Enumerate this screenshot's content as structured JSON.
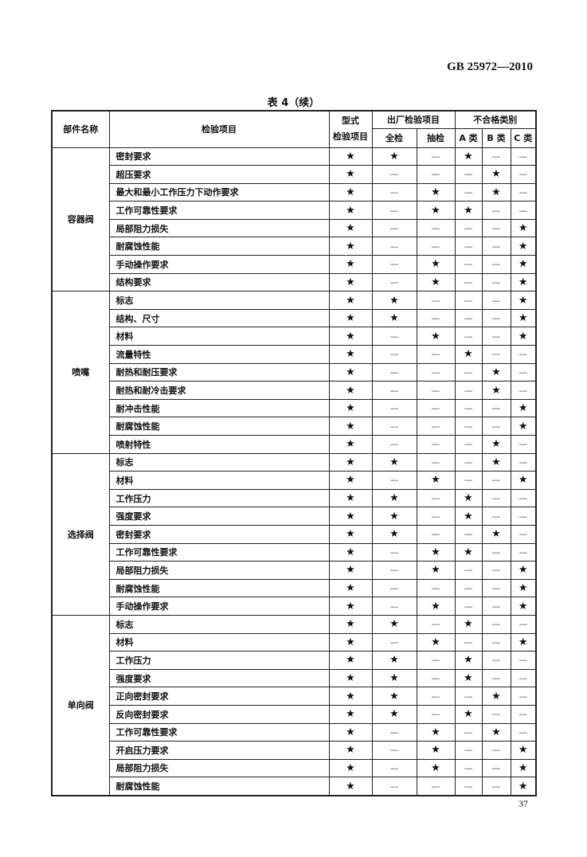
{
  "header": {
    "standard_no": "GB 25972—2010"
  },
  "table_title": "表 4（续）",
  "columns": {
    "part": "部件名称",
    "item": "检验项目",
    "type_test": "型式\n检验项目",
    "factory": "出厂检验项目",
    "full": "全检",
    "sample": "抽检",
    "nonconform": "不合格类别",
    "a": "A 类",
    "b": "B 类",
    "c": "C 类"
  },
  "groups": [
    {
      "part": "容器阀",
      "rows": [
        {
          "item": "密封要求",
          "marks": [
            "★",
            "★",
            "—",
            "★",
            "—",
            "—"
          ]
        },
        {
          "item": "超压要求",
          "marks": [
            "★",
            "—",
            "—",
            "—",
            "★",
            "—"
          ]
        },
        {
          "item": "最大和最小工作压力下动作要求",
          "marks": [
            "★",
            "—",
            "★",
            "—",
            "★",
            "—"
          ]
        },
        {
          "item": "工作可靠性要求",
          "marks": [
            "★",
            "—",
            "★",
            "★",
            "—",
            "—"
          ]
        },
        {
          "item": "局部阻力损失",
          "marks": [
            "★",
            "—",
            "—",
            "—",
            "—",
            "★"
          ]
        },
        {
          "item": "耐腐蚀性能",
          "marks": [
            "★",
            "—",
            "—",
            "—",
            "—",
            "★"
          ]
        },
        {
          "item": "手动操作要求",
          "marks": [
            "★",
            "—",
            "★",
            "—",
            "—",
            "★"
          ]
        },
        {
          "item": "结构要求",
          "marks": [
            "★",
            "—",
            "★",
            "—",
            "—",
            "★"
          ]
        }
      ]
    },
    {
      "part": "喷嘴",
      "rows": [
        {
          "item": "标志",
          "marks": [
            "★",
            "★",
            "—",
            "—",
            "—",
            "★"
          ]
        },
        {
          "item": "结构、尺寸",
          "marks": [
            "★",
            "★",
            "—",
            "—",
            "—",
            "★"
          ]
        },
        {
          "item": "材料",
          "marks": [
            "★",
            "—",
            "★",
            "—",
            "—",
            "★"
          ]
        },
        {
          "item": "流量特性",
          "marks": [
            "★",
            "—",
            "—",
            "★",
            "—",
            "—"
          ]
        },
        {
          "item": "耐热和耐压要求",
          "marks": [
            "★",
            "—",
            "—",
            "—",
            "★",
            "—"
          ]
        },
        {
          "item": "耐热和耐冷击要求",
          "marks": [
            "★",
            "—",
            "—",
            "—",
            "★",
            "—"
          ]
        },
        {
          "item": "耐冲击性能",
          "marks": [
            "★",
            "—",
            "—",
            "—",
            "—",
            "★"
          ]
        },
        {
          "item": "耐腐蚀性能",
          "marks": [
            "★",
            "—",
            "—",
            "—",
            "—",
            "★"
          ]
        },
        {
          "item": "喷射特性",
          "marks": [
            "★",
            "—",
            "—",
            "—",
            "★",
            "—"
          ]
        }
      ]
    },
    {
      "part": "选择阀",
      "rows": [
        {
          "item": "标志",
          "marks": [
            "★",
            "★",
            "—",
            "—",
            "★",
            "—"
          ]
        },
        {
          "item": "材料",
          "marks": [
            "★",
            "—",
            "★",
            "—",
            "—",
            "★"
          ]
        },
        {
          "item": "工作压力",
          "marks": [
            "★",
            "★",
            "—",
            "★",
            "—",
            "—"
          ]
        },
        {
          "item": "强度要求",
          "marks": [
            "★",
            "★",
            "—",
            "★",
            "—",
            "—"
          ]
        },
        {
          "item": "密封要求",
          "marks": [
            "★",
            "★",
            "—",
            "—",
            "★",
            "—"
          ]
        },
        {
          "item": "工作可靠性要求",
          "marks": [
            "★",
            "—",
            "★",
            "★",
            "—",
            "—"
          ]
        },
        {
          "item": "局部阻力损失",
          "marks": [
            "★",
            "—",
            "★",
            "—",
            "—",
            "★"
          ]
        },
        {
          "item": "耐腐蚀性能",
          "marks": [
            "★",
            "—",
            "—",
            "—",
            "—",
            "★"
          ]
        },
        {
          "item": "手动操作要求",
          "marks": [
            "★",
            "—",
            "★",
            "—",
            "—",
            "★"
          ]
        }
      ]
    },
    {
      "part": "单向阀",
      "rows": [
        {
          "item": "标志",
          "marks": [
            "★",
            "★",
            "—",
            "★",
            "—",
            "—"
          ]
        },
        {
          "item": "材料",
          "marks": [
            "★",
            "—",
            "★",
            "—",
            "—",
            "★"
          ]
        },
        {
          "item": "工作压力",
          "marks": [
            "★",
            "★",
            "—",
            "★",
            "—",
            "—"
          ]
        },
        {
          "item": "强度要求",
          "marks": [
            "★",
            "★",
            "—",
            "★",
            "—",
            "—"
          ]
        },
        {
          "item": "正向密封要求",
          "marks": [
            "★",
            "★",
            "—",
            "—",
            "★",
            "—"
          ]
        },
        {
          "item": "反向密封要求",
          "marks": [
            "★",
            "★",
            "—",
            "★",
            "—",
            "—"
          ]
        },
        {
          "item": "工作可靠性要求",
          "marks": [
            "★",
            "—",
            "★",
            "—",
            "★",
            "—"
          ]
        },
        {
          "item": "开启压力要求",
          "marks": [
            "★",
            "—",
            "★",
            "—",
            "—",
            "★"
          ]
        },
        {
          "item": "局部阻力损失",
          "marks": [
            "★",
            "—",
            "★",
            "—",
            "—",
            "★"
          ]
        },
        {
          "item": "耐腐蚀性能",
          "marks": [
            "★",
            "—",
            "—",
            "—",
            "—",
            "★"
          ]
        }
      ]
    }
  ],
  "page_number": "37"
}
